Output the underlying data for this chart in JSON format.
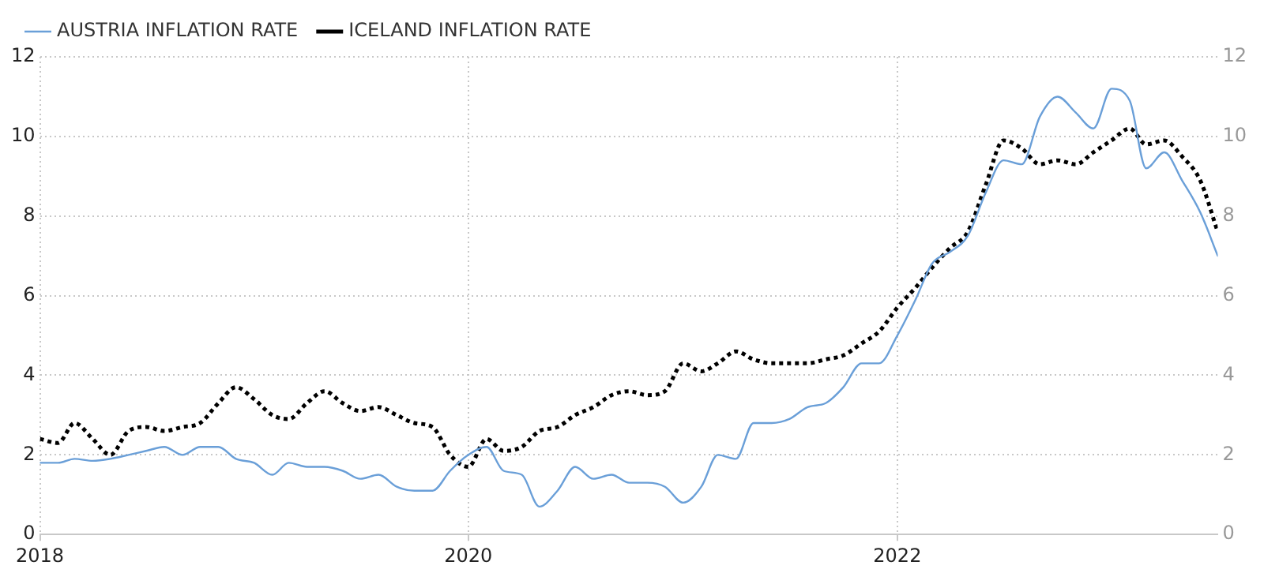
{
  "chart_data": {
    "type": "line",
    "legend": "top left",
    "grid": true,
    "xlim": [
      "2018-01",
      "2023-07"
    ],
    "xticks": [
      "2018",
      "2020",
      "2022"
    ],
    "ylim": [
      0,
      12
    ],
    "yticks": [
      0,
      2,
      4,
      6,
      8,
      10,
      12
    ],
    "y2lim": [
      0,
      12
    ],
    "y2ticks": [
      0,
      2,
      4,
      6,
      8,
      10,
      12
    ],
    "x": [
      "2018-01",
      "2018-02",
      "2018-03",
      "2018-04",
      "2018-05",
      "2018-06",
      "2018-07",
      "2018-08",
      "2018-09",
      "2018-10",
      "2018-11",
      "2018-12",
      "2019-01",
      "2019-02",
      "2019-03",
      "2019-04",
      "2019-05",
      "2019-06",
      "2019-07",
      "2019-08",
      "2019-09",
      "2019-10",
      "2019-11",
      "2019-12",
      "2020-01",
      "2020-02",
      "2020-03",
      "2020-04",
      "2020-05",
      "2020-06",
      "2020-07",
      "2020-08",
      "2020-09",
      "2020-10",
      "2020-11",
      "2020-12",
      "2021-01",
      "2021-02",
      "2021-03",
      "2021-04",
      "2021-05",
      "2021-06",
      "2021-07",
      "2021-08",
      "2021-09",
      "2021-10",
      "2021-11",
      "2021-12",
      "2022-01",
      "2022-02",
      "2022-03",
      "2022-04",
      "2022-05",
      "2022-06",
      "2022-07",
      "2022-08",
      "2022-09",
      "2022-10",
      "2022-11",
      "2022-12",
      "2023-01",
      "2023-02",
      "2023-03",
      "2023-04",
      "2023-05",
      "2023-06",
      "2023-07"
    ],
    "series": [
      {
        "name": "AUSTRIA INFLATION RATE",
        "color": "#6a9fd8",
        "line_style": "solid",
        "values": [
          1.8,
          1.8,
          1.9,
          1.85,
          1.9,
          2.0,
          2.1,
          2.2,
          2.0,
          2.2,
          2.2,
          1.9,
          1.8,
          1.5,
          1.8,
          1.7,
          1.7,
          1.6,
          1.4,
          1.5,
          1.2,
          1.1,
          1.1,
          1.6,
          2.0,
          2.2,
          1.6,
          1.5,
          0.7,
          1.1,
          1.7,
          1.4,
          1.5,
          1.3,
          1.3,
          1.2,
          0.8,
          1.2,
          2.0,
          1.9,
          2.8,
          2.8,
          2.9,
          3.2,
          3.3,
          3.7,
          4.3,
          4.3,
          5.0,
          5.9,
          6.8,
          7.1,
          7.5,
          8.6,
          9.4,
          9.3,
          10.5,
          11.0,
          10.6,
          10.2,
          11.2,
          10.9,
          9.2,
          9.6,
          8.9,
          8.1,
          7.0
        ]
      },
      {
        "name": "ICELAND INFLATION RATE",
        "color": "#000000",
        "line_style": "dotted",
        "values": [
          2.4,
          2.3,
          2.8,
          2.4,
          2.0,
          2.6,
          2.7,
          2.6,
          2.7,
          2.8,
          3.3,
          3.7,
          3.4,
          3.0,
          2.9,
          3.3,
          3.6,
          3.3,
          3.1,
          3.2,
          3.0,
          2.8,
          2.7,
          2.0,
          1.7,
          2.4,
          2.1,
          2.2,
          2.6,
          2.7,
          3.0,
          3.2,
          3.5,
          3.6,
          3.5,
          3.6,
          4.3,
          4.1,
          4.3,
          4.6,
          4.4,
          4.3,
          4.3,
          4.3,
          4.4,
          4.5,
          4.8,
          5.1,
          5.7,
          6.2,
          6.7,
          7.2,
          7.6,
          8.8,
          9.9,
          9.7,
          9.3,
          9.4,
          9.3,
          9.6,
          9.9,
          10.2,
          9.8,
          9.9,
          9.5,
          8.9,
          7.6
        ]
      }
    ]
  }
}
